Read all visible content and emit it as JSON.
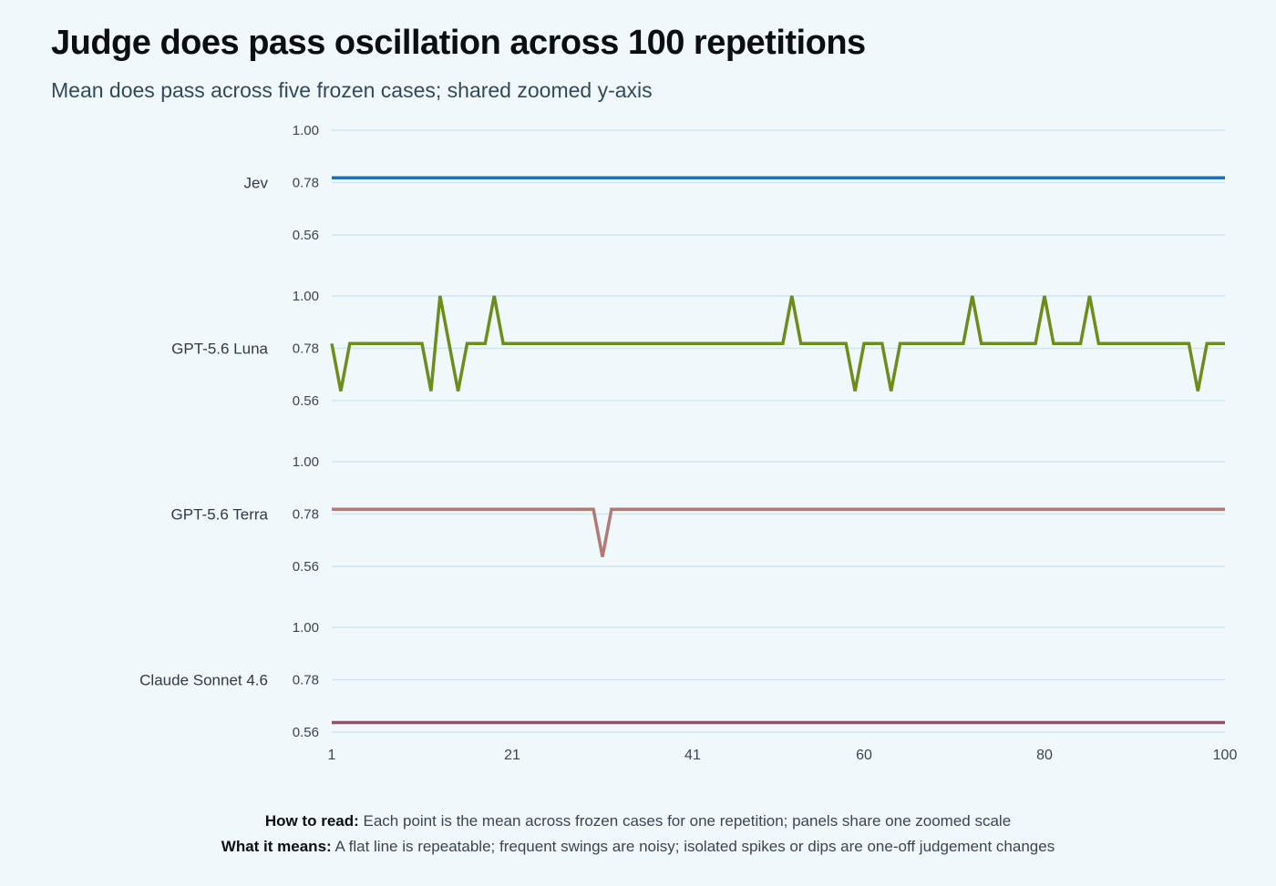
{
  "header": {
    "title": "Judge does pass oscillation across 100 repetitions",
    "subtitle": "Mean does pass across five frozen cases; shared zoomed y-axis"
  },
  "footer": {
    "how_label": "How to read:",
    "how_text": "Each point is the mean across frozen cases for one repetition; panels share one zoomed scale",
    "means_label": "What it means:",
    "means_text": "A flat line is repeatable; frequent swings are noisy; isolated spikes or dips are one-off judgement changes"
  },
  "chart_data": {
    "type": "line",
    "x_ticks": [
      1,
      21,
      41,
      60,
      80,
      100
    ],
    "xlim": [
      1,
      100
    ],
    "ylim": [
      0.52,
      1.0
    ],
    "y_ticks": [
      1.0,
      0.78,
      0.56
    ],
    "y_tick_labels": [
      "1.00",
      "0.78",
      "0.56"
    ],
    "grid": true,
    "colors": {
      "grid": "#cfe6f2",
      "axis_text": "#3a4550"
    },
    "panels": [
      {
        "name": "Jev",
        "color": "#1f6fb5",
        "default": 0.8,
        "points": []
      },
      {
        "name": "GPT-5.6 Luna",
        "color": "#6b8e1a",
        "default": 0.8,
        "points": [
          [
            2,
            0.6
          ],
          [
            12,
            0.6
          ],
          [
            13,
            1.0
          ],
          [
            15,
            0.6
          ],
          [
            19,
            1.0
          ],
          [
            52,
            1.0
          ],
          [
            59,
            0.6
          ],
          [
            63,
            0.6
          ],
          [
            72,
            1.0
          ],
          [
            80,
            1.0
          ],
          [
            85,
            1.0
          ],
          [
            97,
            0.6
          ]
        ]
      },
      {
        "name": "GPT-5.6 Terra",
        "color": "#b27a72",
        "default": 0.8,
        "points": [
          [
            31,
            0.6
          ]
        ]
      },
      {
        "name": "Claude Sonnet 4.6",
        "color": "#8a5566",
        "default": 0.6,
        "points": []
      }
    ]
  }
}
